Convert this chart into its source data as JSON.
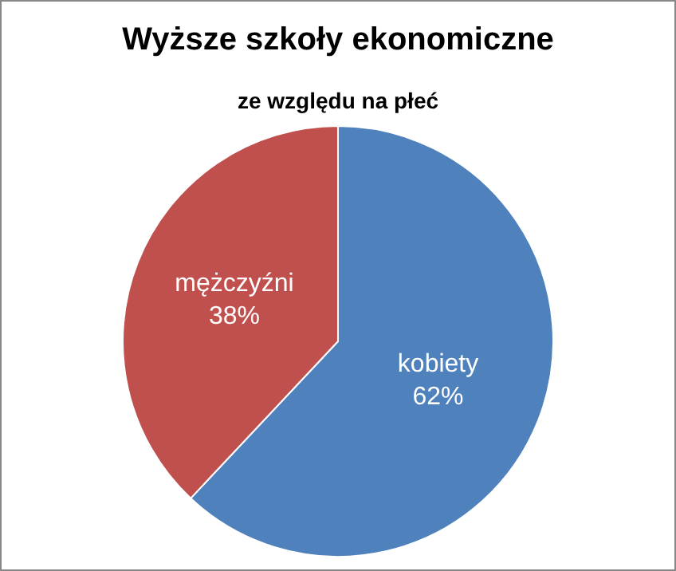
{
  "chart_data": {
    "type": "pie",
    "title": "Wyższe szkoły ekonomiczne",
    "subtitle": "ze względu na płeć",
    "categories": [
      "kobiety",
      "mężczyźni"
    ],
    "values": [
      62,
      38
    ],
    "colors": [
      "#4f81bd",
      "#c0504d"
    ],
    "value_labels": [
      "62%",
      "38%"
    ]
  }
}
